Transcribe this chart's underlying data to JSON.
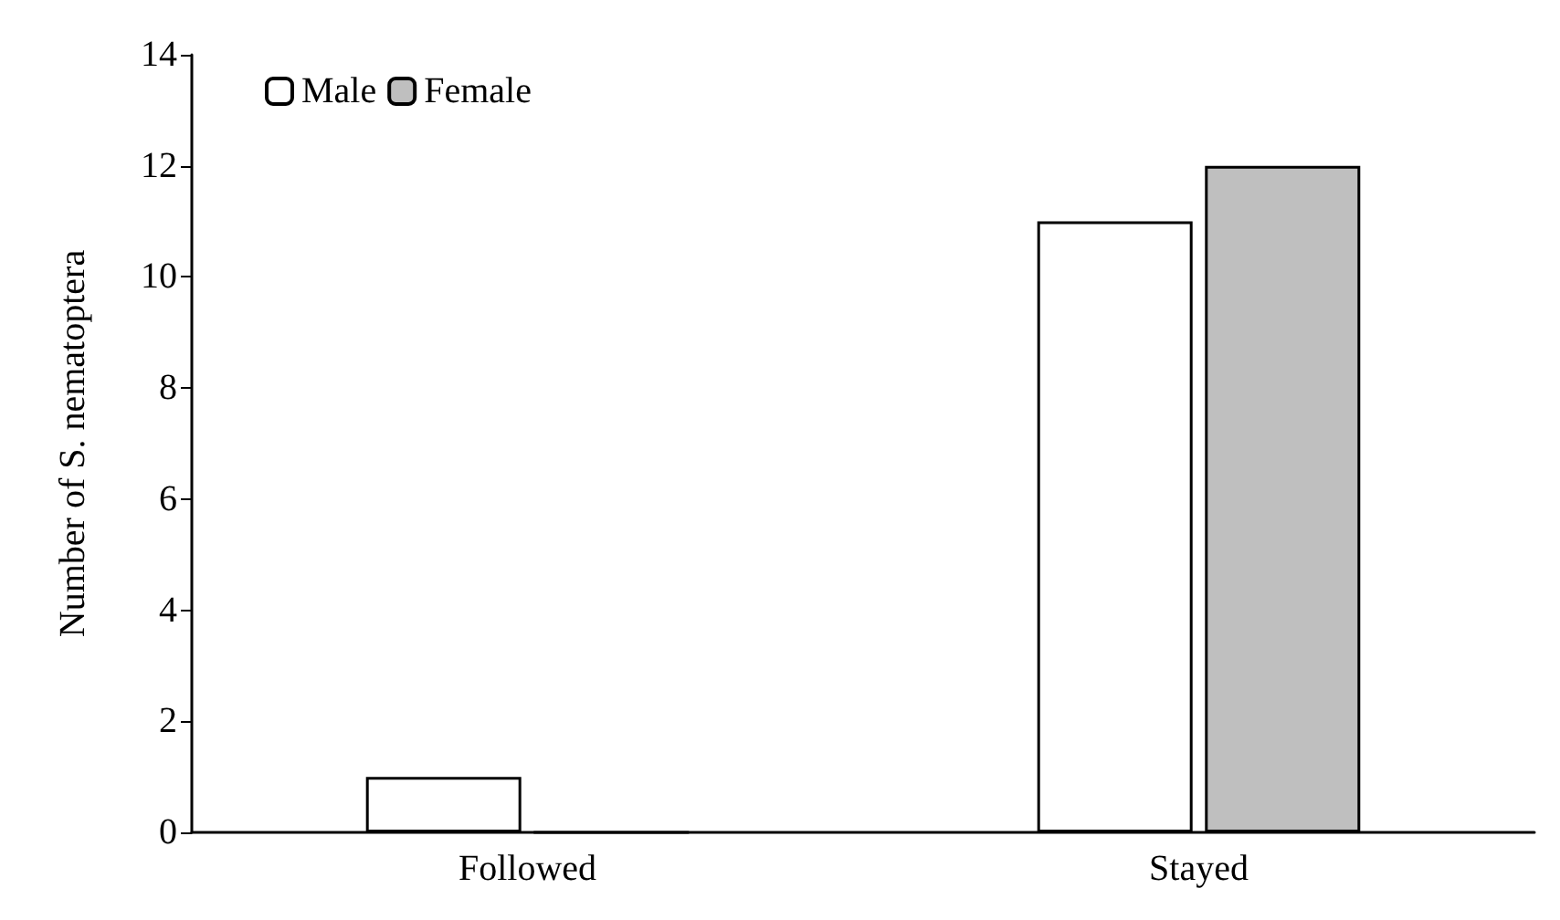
{
  "chart_data": {
    "type": "bar",
    "ylabel": "Number of S. nematoptera",
    "categories": [
      "Followed",
      "Stayed"
    ],
    "series": [
      {
        "name": "Male",
        "color": "#ffffff",
        "values": [
          1,
          11
        ]
      },
      {
        "name": "Female",
        "color": "#bfbfbf",
        "values": [
          0,
          12
        ]
      }
    ],
    "ylim": [
      0,
      14
    ],
    "yticks": [
      0,
      2,
      4,
      6,
      8,
      10,
      12,
      14
    ],
    "grid": false,
    "legend": "top left"
  }
}
